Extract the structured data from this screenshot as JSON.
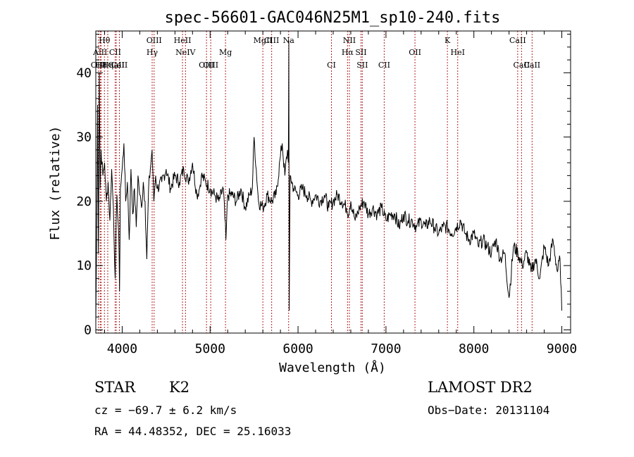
{
  "chart_data": {
    "type": "line",
    "title": "spec-56601-GAC046N25M1_sp10-240.fits",
    "xlabel": "Wavelength (Å)",
    "ylabel": "Flux (relative)",
    "xlim": [
      3700,
      9100
    ],
    "ylim": [
      -0.5,
      46.5
    ],
    "xticks": [
      4000,
      5000,
      6000,
      7000,
      8000,
      9000
    ],
    "yticks": [
      0,
      10,
      20,
      30,
      40
    ],
    "grid": false,
    "legend": "none",
    "series": [
      {
        "x": [
          3700,
          3710,
          3720,
          3730,
          3740,
          3750,
          3760,
          3780,
          3800,
          3820,
          3840,
          3860,
          3880,
          3900,
          3920,
          3940,
          3960,
          3970,
          3980,
          4000,
          4020,
          4040,
          4060,
          4080,
          4100,
          4120,
          4140,
          4160,
          4180,
          4200,
          4220,
          4240,
          4260,
          4280,
          4300,
          4320,
          4340,
          4360,
          4380,
          4400,
          4450,
          4500,
          4550,
          4600,
          4650,
          4700,
          4750,
          4800,
          4850,
          4880,
          4900,
          4950,
          5000,
          5050,
          5100,
          5150,
          5180,
          5200,
          5250,
          5300,
          5350,
          5400,
          5450,
          5480,
          5500,
          5550,
          5600,
          5650,
          5700,
          5750,
          5800,
          5820,
          5850,
          5880,
          5890,
          5895,
          5900,
          5910,
          5950,
          6000,
          6050,
          6100,
          6150,
          6200,
          6250,
          6300,
          6350,
          6400,
          6450,
          6500,
          6550,
          6563,
          6600,
          6650,
          6700,
          6750,
          6800,
          6850,
          6900,
          6950,
          7000,
          7050,
          7100,
          7150,
          7200,
          7250,
          7300,
          7350,
          7400,
          7450,
          7500,
          7550,
          7600,
          7650,
          7700,
          7750,
          7800,
          7850,
          7900,
          7950,
          8000,
          8050,
          8100,
          8150,
          8200,
          8250,
          8300,
          8350,
          8400,
          8450,
          8500,
          8550,
          8600,
          8650,
          8700,
          8750,
          8800,
          8850,
          8900,
          8950,
          8980,
          9000
        ],
        "y": [
          1,
          15,
          35,
          12,
          40,
          22,
          28,
          24,
          26,
          20,
          23,
          17,
          25,
          19,
          8,
          21,
          15,
          6,
          22,
          25,
          29,
          20,
          23,
          14,
          25,
          18,
          22,
          16,
          24,
          21,
          19,
          23,
          20,
          11,
          22,
          25,
          28,
          20,
          24,
          22,
          23,
          25,
          22,
          24,
          23,
          25,
          23,
          26,
          21,
          22,
          24,
          23,
          22,
          21,
          20,
          22,
          14,
          21,
          21,
          20,
          22,
          19,
          21,
          22,
          30,
          20,
          19,
          21,
          20,
          21,
          27,
          29,
          24,
          28,
          26,
          45,
          3,
          24,
          22,
          21,
          22,
          21,
          20,
          21,
          20,
          21,
          19,
          20,
          21,
          20,
          19,
          18,
          20,
          17,
          19,
          20,
          18,
          19,
          18,
          19,
          17,
          18,
          18,
          16,
          18,
          17,
          17,
          16,
          17,
          16,
          17,
          16,
          15,
          16,
          16,
          15,
          16,
          17,
          15,
          14,
          15,
          13,
          14,
          13,
          12,
          14,
          11,
          12,
          5,
          13,
          12,
          10,
          12,
          9,
          11,
          8,
          13,
          10,
          14,
          9,
          11,
          3
        ]
      }
    ],
    "lines": [
      {
        "label": "Hθ",
        "x": 3798,
        "row": 0
      },
      {
        "label": "AlII",
        "x": 3750,
        "row": 1
      },
      {
        "label": "OIII",
        "x": 3730,
        "row": 2
      },
      {
        "label": "H8",
        "x": 3760,
        "row": 2
      },
      {
        "label": "Hη",
        "x": 3836,
        "row": 2
      },
      {
        "label": "CaII",
        "x": 3933,
        "row": 2
      },
      {
        "label": "CII",
        "x": 3920,
        "row": 1
      },
      {
        "label": "CaII",
        "x": 3968,
        "row": 2
      },
      {
        "label": "OIII",
        "x": 4363,
        "row": 0
      },
      {
        "label": "Hγ",
        "x": 4341,
        "row": 1
      },
      {
        "label": "HeII",
        "x": 4686,
        "row": 0
      },
      {
        "label": "NeIV",
        "x": 4720,
        "row": 1
      },
      {
        "label": "OIII",
        "x": 4959,
        "row": 2
      },
      {
        "label": "OIII",
        "x": 5007,
        "row": 2
      },
      {
        "label": "Mg",
        "x": 5175,
        "row": 1
      },
      {
        "label": "MgII",
        "x": 5600,
        "row": 0
      },
      {
        "label": "CIII",
        "x": 5700,
        "row": 0
      },
      {
        "label": "Na",
        "x": 5893,
        "row": 0
      },
      {
        "label": "CI",
        "x": 6380,
        "row": 2
      },
      {
        "label": "NII",
        "x": 6584,
        "row": 0
      },
      {
        "label": "Hα",
        "x": 6563,
        "row": 1
      },
      {
        "label": "SII",
        "x": 6716,
        "row": 1
      },
      {
        "label": "SII",
        "x": 6731,
        "row": 2
      },
      {
        "label": "CII",
        "x": 6980,
        "row": 2
      },
      {
        "label": "OII",
        "x": 7330,
        "row": 1
      },
      {
        "label": "K",
        "x": 7699,
        "row": 0
      },
      {
        "label": "HeI",
        "x": 7816,
        "row": 1
      },
      {
        "label": "CaII",
        "x": 8498,
        "row": 0
      },
      {
        "label": "CaII",
        "x": 8542,
        "row": 2
      },
      {
        "label": "CaII",
        "x": 8662,
        "row": 2
      }
    ]
  },
  "info": {
    "class": "STAR",
    "subclass": "K2",
    "survey": "LAMOST DR2",
    "cz": "cz = −69.7 ± 6.2 km/s",
    "obsdate": "Obs−Date: 20131104",
    "radec": "RA =  44.48352, DEC =  25.16033"
  }
}
